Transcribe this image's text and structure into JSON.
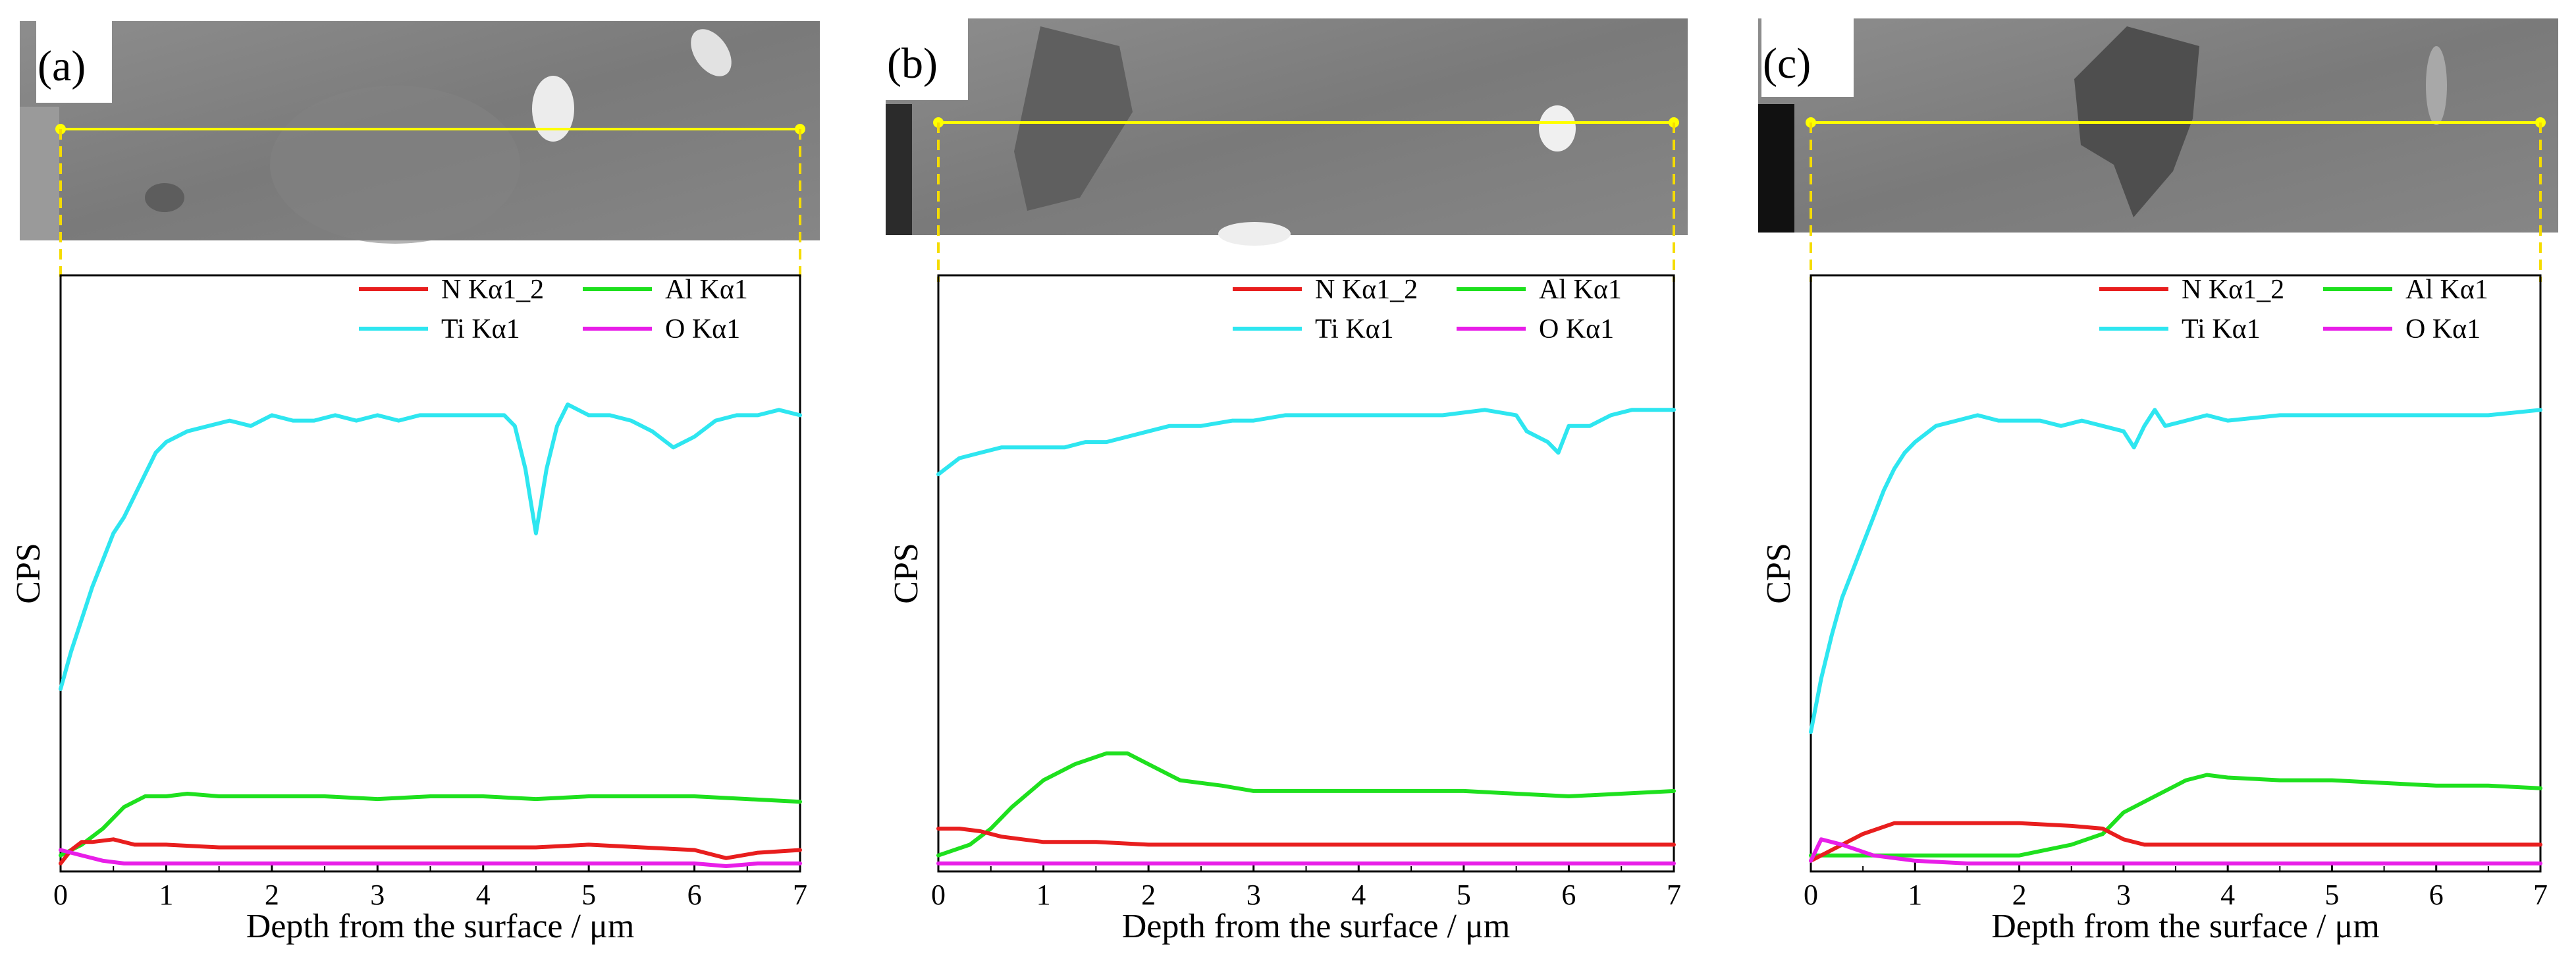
{
  "chart_data": [
    {
      "type": "line",
      "panel_label": "(a)",
      "xlabel": "Depth from the surface / μm",
      "ylabel": "CPS",
      "xlim": [
        0,
        7
      ],
      "ylim": [
        0,
        100
      ],
      "x_ticks": [
        "0",
        "1",
        "2",
        "3",
        "4",
        "5",
        "6",
        "7"
      ],
      "legend": [
        "N Kα1_2",
        "Al Kα1",
        "Ti Kα1",
        "O Kα1"
      ],
      "series": [
        {
          "name": "Ti Kα1",
          "color": "#2ee6f0",
          "x": [
            0,
            0.1,
            0.2,
            0.3,
            0.4,
            0.5,
            0.6,
            0.7,
            0.8,
            0.9,
            1.0,
            1.2,
            1.4,
            1.6,
            1.8,
            2.0,
            2.2,
            2.4,
            2.6,
            2.8,
            3.0,
            3.2,
            3.4,
            3.6,
            3.8,
            4.0,
            4.2,
            4.3,
            4.4,
            4.5,
            4.6,
            4.7,
            4.8,
            5.0,
            5.2,
            5.4,
            5.6,
            5.8,
            6.0,
            6.2,
            6.4,
            6.6,
            6.8,
            7.0
          ],
          "y": [
            33,
            40,
            46,
            52,
            57,
            62,
            65,
            69,
            73,
            77,
            79,
            81,
            82,
            83,
            82,
            84,
            83,
            83,
            84,
            83,
            84,
            83,
            84,
            84,
            84,
            84,
            84,
            82,
            74,
            62,
            74,
            82,
            86,
            84,
            84,
            83,
            81,
            78,
            80,
            83,
            84,
            84,
            85,
            84
          ]
        },
        {
          "name": "Al Kα1",
          "color": "#1ee01e",
          "x": [
            0,
            0.2,
            0.4,
            0.6,
            0.8,
            1.0,
            1.2,
            1.5,
            2.0,
            2.5,
            3.0,
            3.5,
            4.0,
            4.5,
            5.0,
            5.5,
            6.0,
            6.5,
            7.0
          ],
          "y": [
            2,
            4,
            7,
            11,
            13,
            13,
            13.5,
            13,
            13,
            13,
            12.5,
            13,
            13,
            12.5,
            13,
            13,
            13,
            12.5,
            12
          ]
        },
        {
          "name": "N Kα1_2",
          "color": "#e81e1e",
          "x": [
            0,
            0.1,
            0.2,
            0.3,
            0.5,
            0.7,
            1.0,
            1.5,
            2.0,
            2.5,
            3.0,
            3.5,
            4.0,
            4.5,
            5.0,
            5.5,
            6.0,
            6.3,
            6.6,
            7.0
          ],
          "y": [
            0.5,
            3,
            4.5,
            4.5,
            5,
            4,
            4,
            3.5,
            3.5,
            3.5,
            3.5,
            3.5,
            3.5,
            3.5,
            4,
            3.5,
            3,
            1.5,
            2.5,
            3
          ]
        },
        {
          "name": "O Kα1",
          "color": "#e81ee8",
          "x": [
            0,
            0.2,
            0.4,
            0.6,
            1.0,
            1.5,
            2.0,
            2.5,
            3.0,
            3.5,
            4.0,
            4.5,
            5.0,
            5.5,
            6.0,
            6.3,
            6.6,
            7.0
          ],
          "y": [
            3,
            2,
            1,
            0.5,
            0.5,
            0.5,
            0.5,
            0.5,
            0.5,
            0.5,
            0.5,
            0.5,
            0.5,
            0.5,
            0.5,
            0,
            0.5,
            0.5
          ]
        }
      ]
    },
    {
      "type": "line",
      "panel_label": "(b)",
      "xlabel": "Depth from the surface / μm",
      "ylabel": "CPS",
      "xlim": [
        0,
        7
      ],
      "ylim": [
        0,
        100
      ],
      "x_ticks": [
        "0",
        "1",
        "2",
        "3",
        "4",
        "5",
        "6",
        "7"
      ],
      "legend": [
        "N Kα1_2",
        "Al Kα1",
        "Ti Kα1",
        "O Kα1"
      ],
      "series": [
        {
          "name": "Ti Kα1",
          "color": "#2ee6f0",
          "x": [
            0,
            0.2,
            0.4,
            0.6,
            0.8,
            1.0,
            1.2,
            1.4,
            1.6,
            1.8,
            2.0,
            2.2,
            2.5,
            2.8,
            3.0,
            3.3,
            3.6,
            4.0,
            4.4,
            4.8,
            5.2,
            5.5,
            5.6,
            5.8,
            5.9,
            6.0,
            6.2,
            6.4,
            6.6,
            6.8,
            7.0
          ],
          "y": [
            73,
            76,
            77,
            78,
            78,
            78,
            78,
            79,
            79,
            80,
            81,
            82,
            82,
            83,
            83,
            84,
            84,
            84,
            84,
            84,
            85,
            84,
            81,
            79,
            77,
            82,
            82,
            84,
            85,
            85,
            85
          ]
        },
        {
          "name": "Al Kα1",
          "color": "#1ee01e",
          "x": [
            0,
            0.3,
            0.5,
            0.7,
            1.0,
            1.3,
            1.6,
            1.8,
            2.0,
            2.3,
            2.7,
            3.0,
            3.5,
            4.0,
            4.5,
            5.0,
            5.5,
            6.0,
            6.5,
            7.0
          ],
          "y": [
            2,
            4,
            7,
            11,
            16,
            19,
            21,
            21,
            19,
            16,
            15,
            14,
            14,
            14,
            14,
            14,
            13.5,
            13,
            13.5,
            14
          ]
        },
        {
          "name": "N Kα1_2",
          "color": "#e81e1e",
          "x": [
            0,
            0.2,
            0.4,
            0.6,
            0.8,
            1.0,
            1.5,
            2.0,
            2.5,
            3.0,
            3.5,
            4.0,
            4.5,
            5.0,
            5.5,
            6.0,
            6.5,
            7.0
          ],
          "y": [
            7,
            7,
            6.5,
            5.5,
            5,
            4.5,
            4.5,
            4,
            4,
            4,
            4,
            4,
            4,
            4,
            4,
            4,
            4,
            4
          ]
        },
        {
          "name": "O Kα1",
          "color": "#e81ee8",
          "x": [
            0,
            0.5,
            1.0,
            1.5,
            2.0,
            2.5,
            3.0,
            3.5,
            4.0,
            4.5,
            5.0,
            5.5,
            6.0,
            6.5,
            7.0
          ],
          "y": [
            0.5,
            0.5,
            0.5,
            0.5,
            0.5,
            0.5,
            0.5,
            0.5,
            0.5,
            0.5,
            0.5,
            0.5,
            0.5,
            0.5,
            0.5
          ]
        }
      ]
    },
    {
      "type": "line",
      "panel_label": "(c)",
      "xlabel": "Depth from the surface / μm",
      "ylabel": "CPS",
      "xlim": [
        0,
        7
      ],
      "ylim": [
        0,
        100
      ],
      "x_ticks": [
        "0",
        "1",
        "2",
        "3",
        "4",
        "5",
        "6",
        "7"
      ],
      "legend": [
        "N Kα1_2",
        "Al Kα1",
        "Ti Kα1",
        "O Kα1"
      ],
      "series": [
        {
          "name": "Ti Kα1",
          "color": "#2ee6f0",
          "x": [
            0,
            0.1,
            0.2,
            0.3,
            0.4,
            0.5,
            0.6,
            0.7,
            0.8,
            0.9,
            1.0,
            1.2,
            1.4,
            1.6,
            1.8,
            2.0,
            2.2,
            2.4,
            2.6,
            2.8,
            3.0,
            3.1,
            3.2,
            3.3,
            3.4,
            3.6,
            3.8,
            4.0,
            4.5,
            5.0,
            5.5,
            6.0,
            6.5,
            7.0
          ],
          "y": [
            25,
            35,
            43,
            50,
            55,
            60,
            65,
            70,
            74,
            77,
            79,
            82,
            83,
            84,
            83,
            83,
            83,
            82,
            83,
            82,
            81,
            78,
            82,
            85,
            82,
            83,
            84,
            83,
            84,
            84,
            84,
            84,
            84,
            85
          ]
        },
        {
          "name": "Al Kα1",
          "color": "#1ee01e",
          "x": [
            0,
            0.2,
            0.5,
            1.0,
            1.5,
            2.0,
            2.5,
            2.8,
            3.0,
            3.3,
            3.6,
            3.8,
            4.0,
            4.5,
            5.0,
            5.5,
            6.0,
            6.5,
            7.0
          ],
          "y": [
            2,
            2,
            2,
            2,
            2,
            2,
            4,
            6,
            10,
            13,
            16,
            17,
            16.5,
            16,
            16,
            15.5,
            15,
            15,
            14.5
          ]
        },
        {
          "name": "N Kα1_2",
          "color": "#e81e1e",
          "x": [
            0,
            0.2,
            0.5,
            0.8,
            1.0,
            1.5,
            2.0,
            2.5,
            2.8,
            3.0,
            3.2,
            3.5,
            4.0,
            4.5,
            5.0,
            5.5,
            6.0,
            6.5,
            7.0
          ],
          "y": [
            1,
            3,
            6,
            8,
            8,
            8,
            8,
            7.5,
            7,
            5,
            4,
            4,
            4,
            4,
            4,
            4,
            4,
            4,
            4
          ]
        },
        {
          "name": "O Kα1",
          "color": "#e81ee8",
          "x": [
            0,
            0.1,
            0.3,
            0.6,
            1.0,
            1.5,
            2.0,
            2.5,
            3.0,
            3.5,
            4.0,
            4.5,
            5.0,
            5.5,
            6.0,
            6.5,
            7.0
          ],
          "y": [
            1,
            5,
            4,
            2,
            1,
            0.5,
            0.5,
            0.5,
            0.5,
            0.5,
            0.5,
            0.5,
            0.5,
            0.5,
            0.5,
            0.5,
            0.5
          ]
        }
      ]
    }
  ]
}
